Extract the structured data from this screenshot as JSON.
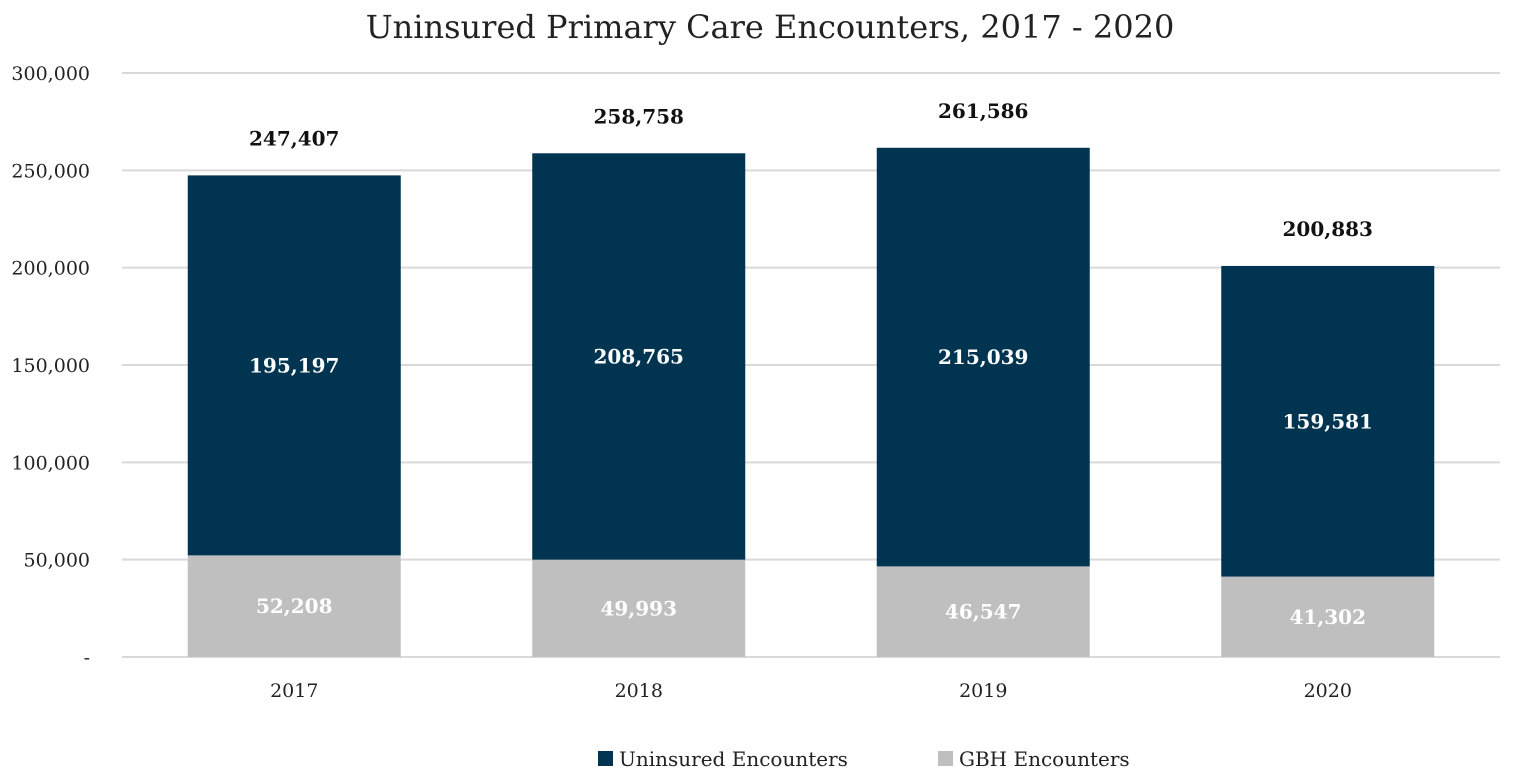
{
  "chart_data": {
    "type": "bar",
    "stacked": true,
    "title": "Uninsured Primary Care Encounters, 2017 - 2020",
    "xlabel": "",
    "ylabel": "",
    "categories": [
      "2017",
      "2018",
      "2019",
      "2020"
    ],
    "series": [
      {
        "name": "GBH Encounters",
        "color": "#bfbfbf",
        "values": [
          52208,
          49993,
          46547,
          41302
        ],
        "labels": [
          "52,208",
          "49,993",
          "46,547",
          "41,302"
        ]
      },
      {
        "name": "Uninsured Encounters",
        "color": "#003450",
        "values": [
          195197,
          208765,
          215039,
          159581
        ],
        "labels": [
          "195,197",
          "208,765",
          "215,039",
          "159,581"
        ]
      }
    ],
    "totals": [
      247407,
      258758,
      261586,
      200883
    ],
    "total_labels": [
      "247,407",
      "258,758",
      "261,586",
      "200,883"
    ],
    "ylim": [
      0,
      300000
    ],
    "yticks": [
      0,
      50000,
      100000,
      150000,
      200000,
      250000,
      300000
    ],
    "ytick_labels": [
      "-",
      "50,000",
      "100,000",
      "150,000",
      "200,000",
      "250,000",
      "300,000"
    ],
    "grid": true,
    "gridline_color": "#d9d9d9",
    "legend_position": "bottom",
    "legend_order": [
      "Uninsured Encounters",
      "GBH Encounters"
    ]
  }
}
